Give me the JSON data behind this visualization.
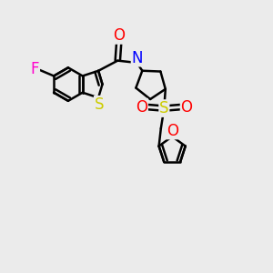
{
  "background_color": "#ebebeb",
  "bond_color": "#000000",
  "bond_width": 1.8,
  "atom_colors": {
    "F": "#ff00cc",
    "S_thio": "#cccc00",
    "S_sulfone": "#cccc00",
    "N": "#0000ff",
    "O": "#ff0000"
  },
  "font_size": 12,
  "figsize": [
    3.0,
    3.0
  ],
  "dpi": 100
}
